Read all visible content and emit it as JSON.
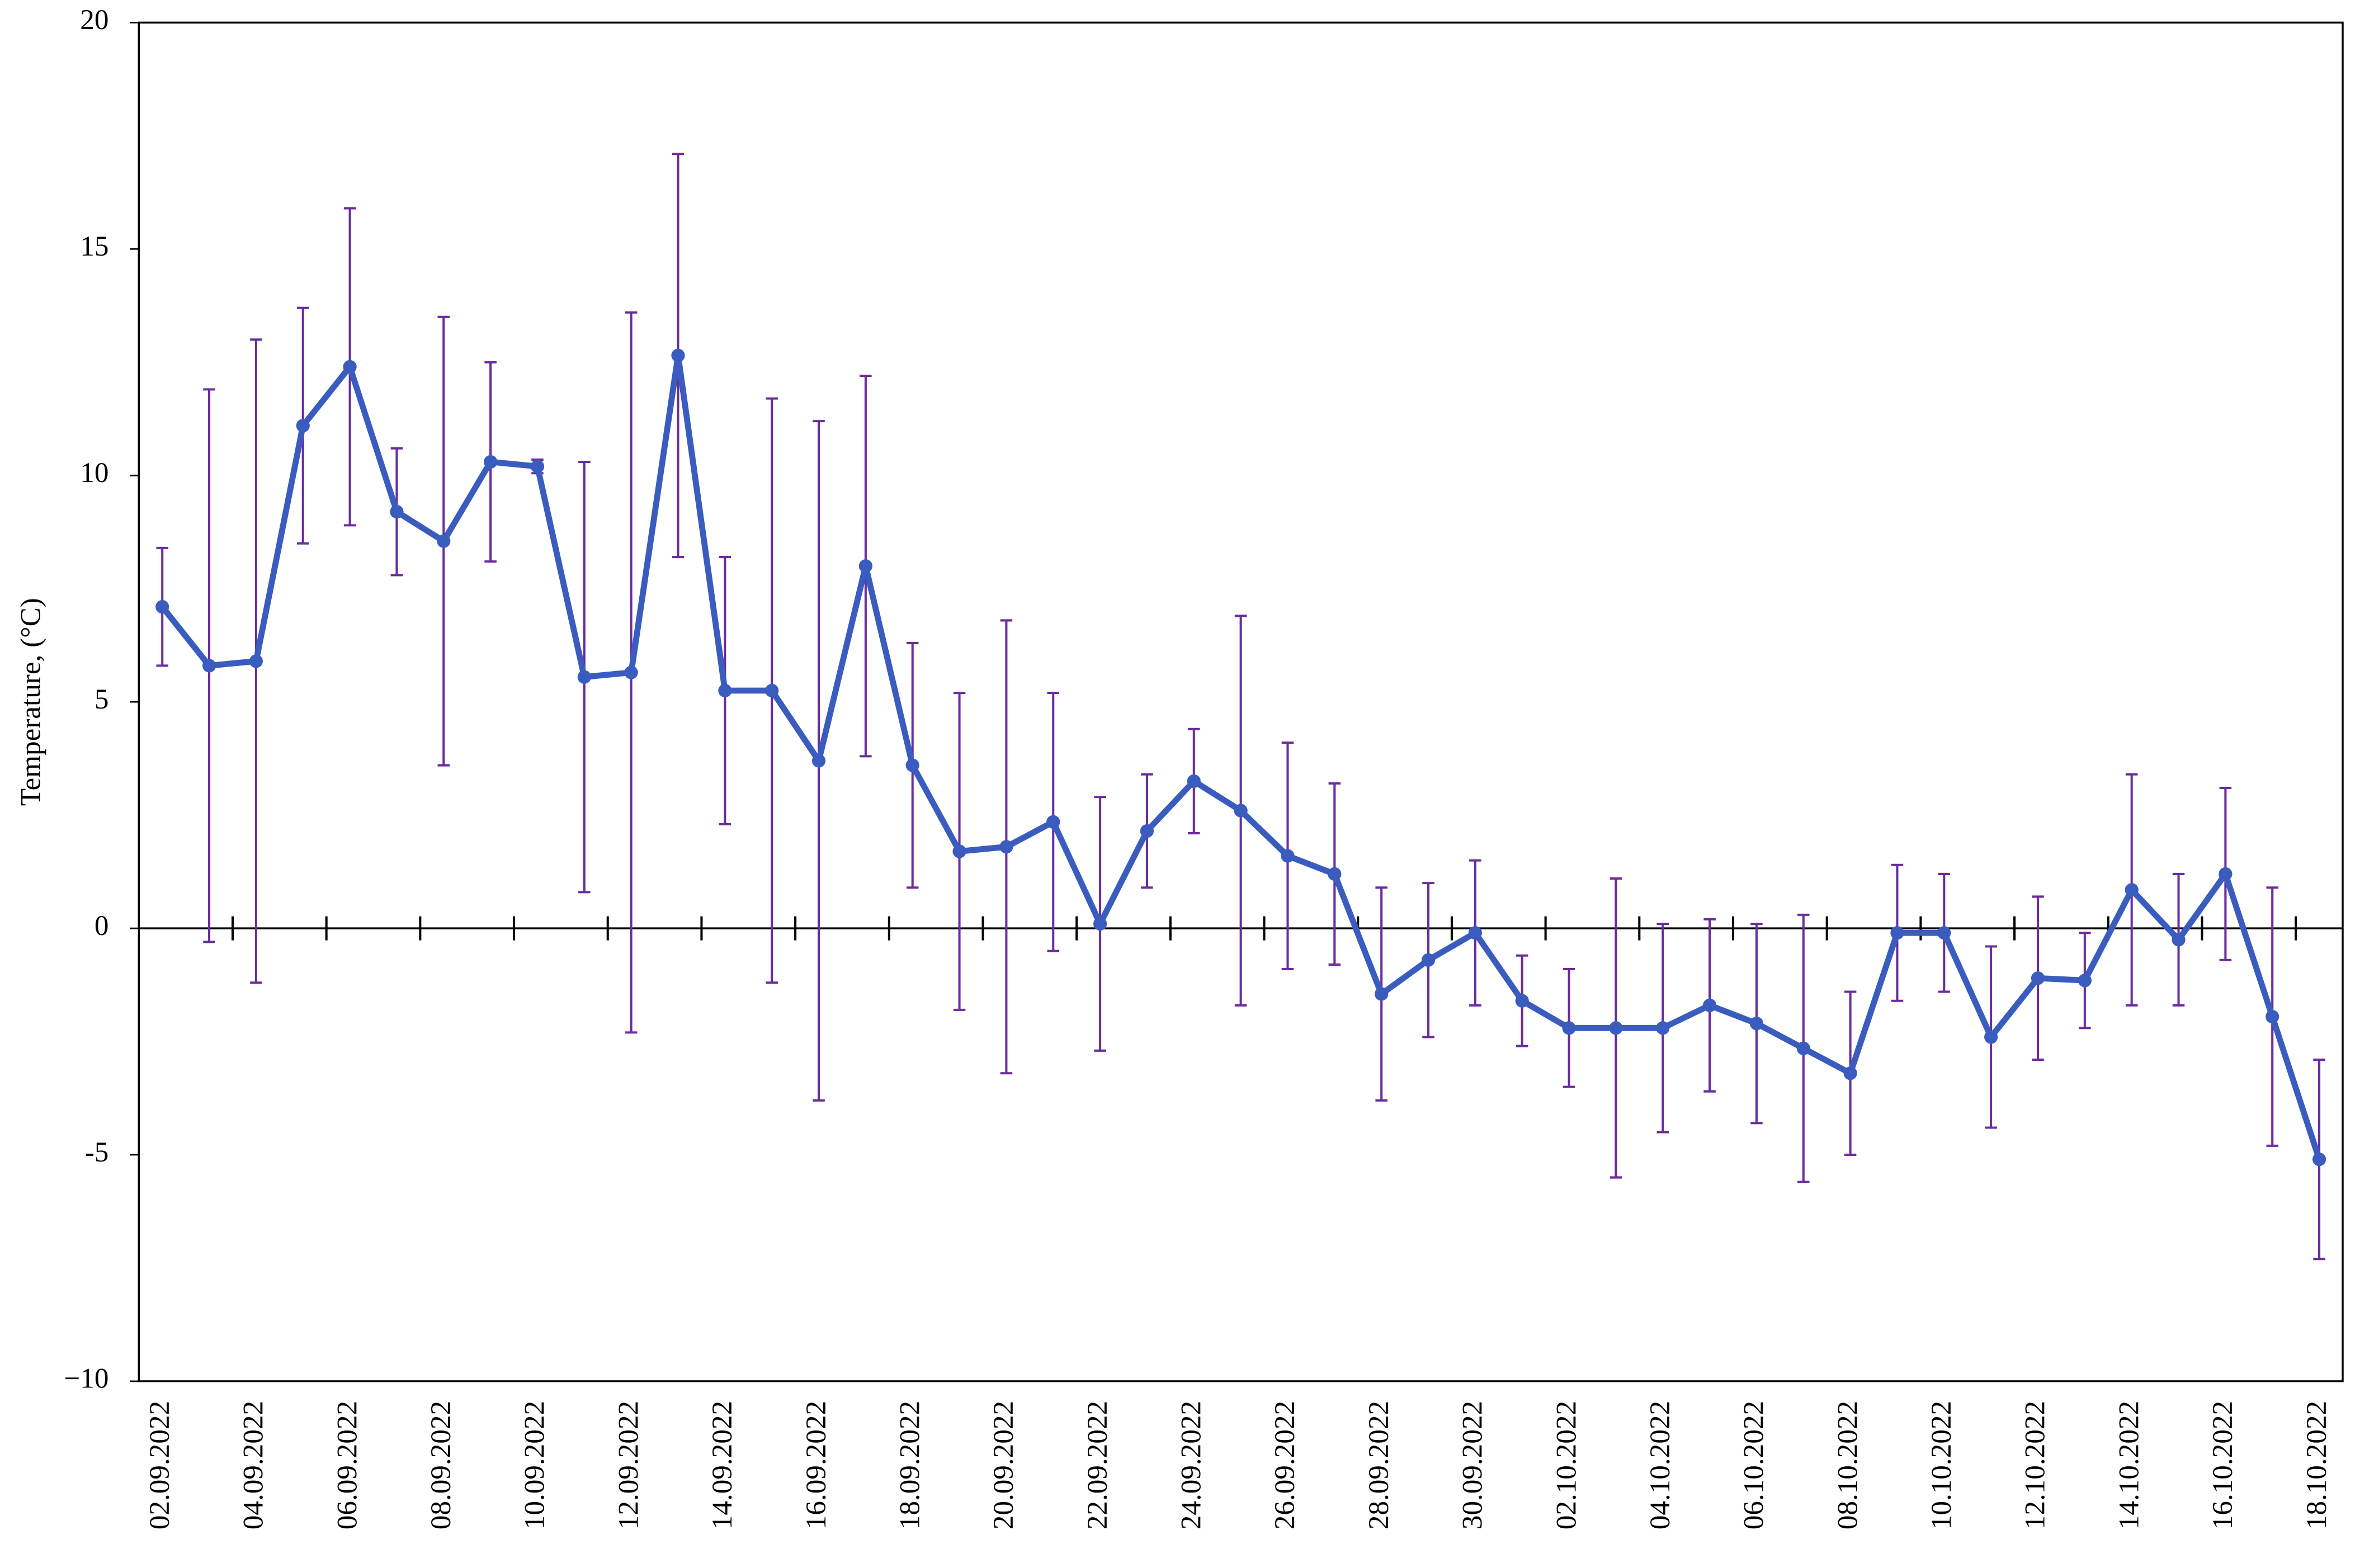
{
  "chart_data": {
    "type": "line",
    "y_label": "Temperature, (°C)",
    "categories": [
      "02.09.2022",
      null,
      "04.09.2022",
      null,
      "06.09.2022",
      null,
      "08.09.2022",
      null,
      "10.09.2022",
      null,
      "12.09.2022",
      null,
      "14.09.2022",
      null,
      "16.09.2022",
      null,
      "18.09.2022",
      null,
      "20.09.2022",
      null,
      "22.09.2022",
      null,
      "24.09.2022",
      null,
      "26.09.2022",
      null,
      "28.09.2022",
      null,
      "30.09.2022",
      null,
      "02.10.2022",
      null,
      "04.10.2022",
      null,
      "06.10.2022",
      null,
      "08.10.2022",
      null,
      "10.10.2022",
      null,
      "12.10.2022",
      null,
      "14.10.2022",
      null,
      "16.10.2022",
      null,
      "18.10.2022"
    ],
    "values": [
      7.1,
      5.8,
      5.9,
      11.1,
      12.4,
      9.2,
      8.55,
      10.3,
      10.2,
      5.55,
      5.65,
      12.65,
      5.25,
      5.25,
      3.7,
      8.0,
      3.6,
      1.7,
      1.8,
      2.35,
      0.1,
      2.15,
      3.25,
      2.6,
      1.6,
      1.2,
      -1.45,
      -0.7,
      -0.1,
      -1.6,
      -2.2,
      -2.2,
      -2.2,
      -1.7,
      -2.1,
      -2.65,
      -3.2,
      -0.1,
      -0.1,
      -2.4,
      -1.1,
      -1.15,
      0.85,
      -0.25,
      1.2,
      -1.95,
      -5.1
    ],
    "errors": [
      1.3,
      6.1,
      7.1,
      2.6,
      3.5,
      1.4,
      4.95,
      2.2,
      0.15,
      4.75,
      7.95,
      4.45,
      2.95,
      6.45,
      7.5,
      4.2,
      2.7,
      3.5,
      5.0,
      2.85,
      2.8,
      1.25,
      1.15,
      4.3,
      2.5,
      2.0,
      2.35,
      1.7,
      1.6,
      1.0,
      1.3,
      3.3,
      2.3,
      1.9,
      2.2,
      2.95,
      1.8,
      1.5,
      1.3,
      2.0,
      1.8,
      1.05,
      2.55,
      1.45,
      1.9,
      2.85,
      2.2
    ],
    "color": "#3a5cbf",
    "error_color": "#6a2c9e",
    "ylim": [
      -10,
      20
    ],
    "yticks": [
      {
        "value": -10,
        "label": "−10"
      },
      -5,
      0,
      5,
      10,
      15,
      20
    ]
  }
}
